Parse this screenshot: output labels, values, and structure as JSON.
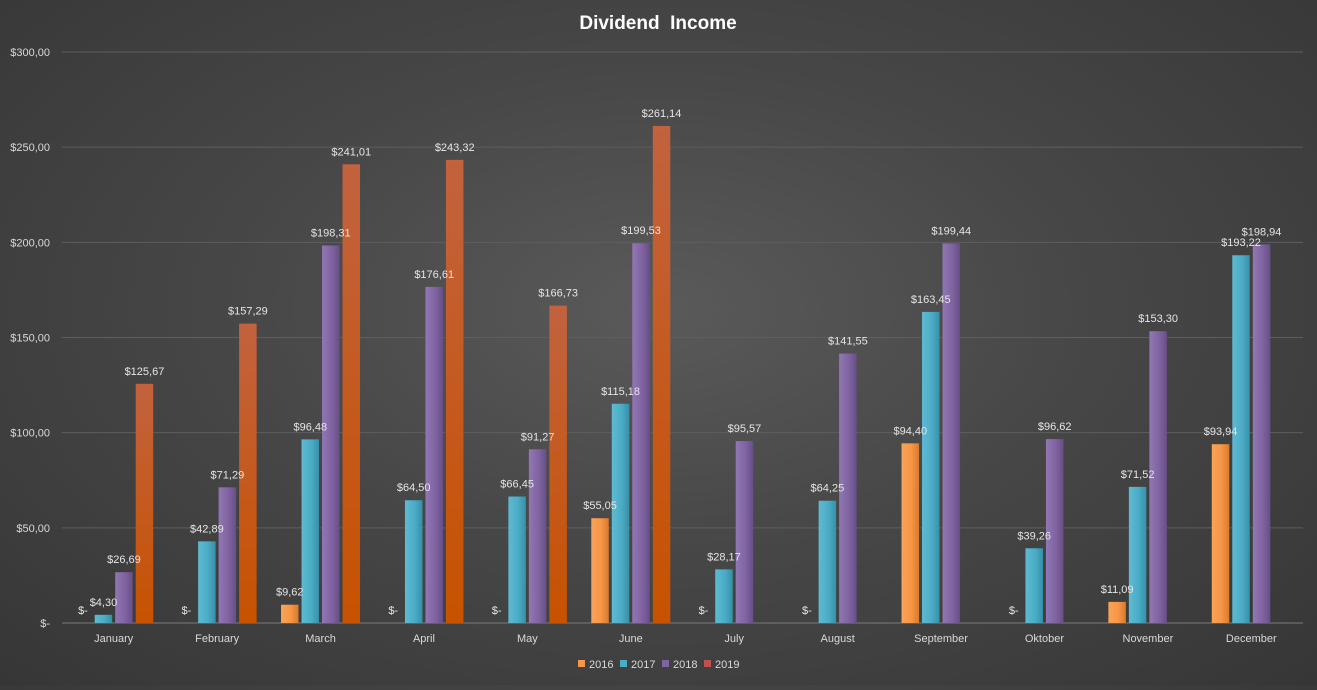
{
  "chart_data": {
    "type": "bar",
    "title": "Dividend  Income",
    "xlabel": "",
    "ylabel": "",
    "ylim": [
      0,
      300
    ],
    "yticks": [
      0,
      50,
      100,
      150,
      200,
      250,
      300
    ],
    "ytick_labels": [
      "$-",
      "$50,00",
      "$100,00",
      "$150,00",
      "$200,00",
      "$250,00",
      "$300,00"
    ],
    "grid": true,
    "legend_position": "bottom",
    "categories": [
      "January",
      "February",
      "March",
      "April",
      "May",
      "June",
      "July",
      "August",
      "September",
      "Oktober",
      "November",
      "December"
    ],
    "series": [
      {
        "name": "2016",
        "color": "#f79646",
        "values": [
          0,
          0,
          9.62,
          0,
          0,
          55.05,
          0,
          0,
          94.4,
          0,
          11.09,
          93.94
        ],
        "labels": [
          "$-",
          "$-",
          "$9,62",
          "$-",
          "$-",
          "$55,05",
          "$-",
          "$-",
          "$94,40",
          "$-",
          "$11,09",
          "$93,94"
        ]
      },
      {
        "name": "2017",
        "color": "#4bacc6",
        "values": [
          4.3,
          42.89,
          96.48,
          64.5,
          66.45,
          115.18,
          28.17,
          64.25,
          163.45,
          39.26,
          71.52,
          193.22
        ],
        "labels": [
          "$4,30",
          "$42,89",
          "$96,48",
          "$64,50",
          "$66,45",
          "$115,18",
          "$28,17",
          "$64,25",
          "$163,45",
          "$39,26",
          "$71,52",
          "$193,22"
        ]
      },
      {
        "name": "2018",
        "color": "#8064a2",
        "values": [
          26.69,
          71.29,
          198.31,
          176.61,
          91.27,
          199.53,
          95.57,
          141.55,
          199.44,
          96.62,
          153.3,
          198.94
        ],
        "labels": [
          "$26,69",
          "$71,29",
          "$198,31",
          "$176,61",
          "$91,27",
          "$199,53",
          "$95,57",
          "$141,55",
          "$199,44",
          "$96,62",
          "$153,30",
          "$198,94"
        ]
      },
      {
        "name": "2019",
        "color": "#c0504d",
        "values": [
          125.67,
          157.29,
          241.01,
          243.32,
          166.73,
          261.14,
          null,
          null,
          null,
          null,
          null,
          null
        ],
        "labels": [
          "$125,67",
          "$157,29",
          "$241,01",
          "$243,32",
          "$166,73",
          "$261,14",
          "",
          "",
          "",
          "",
          "",
          ""
        ]
      }
    ]
  }
}
